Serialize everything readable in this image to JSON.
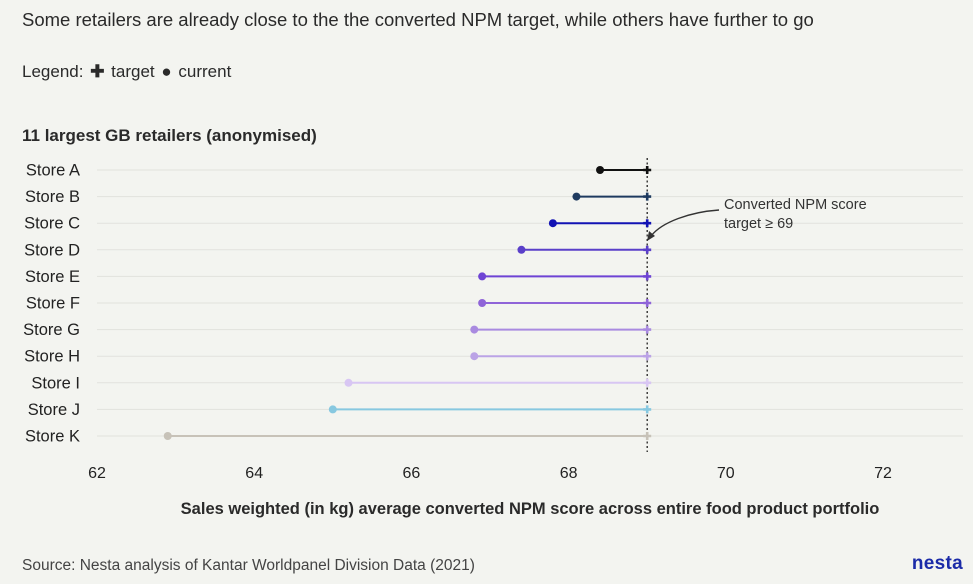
{
  "title": "Some retailers are already close to the the converted NPM target, while others have further to go",
  "legend": {
    "prefix": "Legend:",
    "target_symbol": "✚",
    "target_label": "target",
    "current_symbol": "●",
    "current_label": "current"
  },
  "subtitle": "11 largest GB retailers (anonymised)",
  "xlabel": "Sales weighted (in kg) average converted NPM score across entire food product portfolio",
  "source": "Source: Nesta analysis of Kantar Worldpanel Division Data (2021)",
  "logo": "nesta",
  "annotation": {
    "line1": "Converted NPM score",
    "line2": "target ≥ 69"
  },
  "chart_data": {
    "type": "dumbbell",
    "xlim": [
      62,
      73
    ],
    "xticks": [
      "62",
      "64",
      "66",
      "68",
      "70",
      "72"
    ],
    "target": 69,
    "grid": true,
    "categories": [
      "Store A",
      "Store B",
      "Store C",
      "Store D",
      "Store E",
      "Store F",
      "Store G",
      "Store H",
      "Store I",
      "Store J",
      "Store K"
    ],
    "current": [
      68.4,
      68.1,
      67.8,
      67.4,
      66.9,
      66.9,
      66.8,
      66.8,
      65.2,
      65.0,
      62.9
    ],
    "colors": [
      "#111111",
      "#1e3a5f",
      "#1212b4",
      "#5a3fc9",
      "#6e44d4",
      "#8f64d8",
      "#a98ae0",
      "#bba3e6",
      "#d8c6f3",
      "#87c8e0",
      "#c7c2b8"
    ]
  }
}
